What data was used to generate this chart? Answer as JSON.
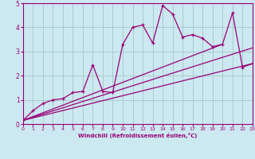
{
  "xlabel": "Windchill (Refroidissement éolien,°C)",
  "background_color": "#cce8f0",
  "grid_color": "#aacccc",
  "line_color": "#990077",
  "axis_bg": "#330066",
  "xlim": [
    0,
    23
  ],
  "ylim": [
    0,
    5
  ],
  "xticks": [
    0,
    1,
    2,
    3,
    4,
    5,
    6,
    7,
    8,
    9,
    10,
    11,
    12,
    13,
    14,
    15,
    16,
    17,
    18,
    19,
    20,
    21,
    22,
    23
  ],
  "yticks": [
    0,
    1,
    2,
    3,
    4,
    5
  ],
  "main_x": [
    0,
    1,
    2,
    3,
    4,
    5,
    6,
    7,
    8,
    9,
    10,
    11,
    12,
    13,
    14,
    15,
    16,
    17,
    18,
    19,
    20,
    21,
    22,
    23
  ],
  "main_y": [
    0.15,
    0.55,
    0.85,
    1.0,
    1.05,
    1.3,
    1.35,
    2.45,
    1.35,
    1.3,
    3.3,
    4.0,
    4.1,
    3.35,
    4.9,
    4.55,
    3.6,
    3.7,
    3.55,
    3.2,
    3.3,
    4.6,
    2.35,
    2.5
  ],
  "line1_x": [
    0,
    23
  ],
  "line1_y": [
    0.15,
    2.5
  ],
  "line2_x": [
    0,
    23
  ],
  "line2_y": [
    0.15,
    3.15
  ],
  "line3_x": [
    0,
    20
  ],
  "line3_y": [
    0.15,
    3.3
  ]
}
